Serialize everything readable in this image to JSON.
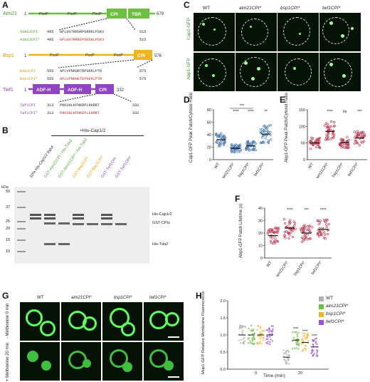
{
  "panels": {
    "A": "A",
    "B": "B",
    "C": "C",
    "D": "D",
    "E": "E",
    "F": "F",
    "G": "G",
    "H": "H"
  },
  "panelA": {
    "proteins": [
      {
        "name": "Aim21",
        "start": "1",
        "end": "679",
        "motifs": [
          "PxxP",
          "PxxP",
          "PxxP"
        ],
        "domains": [
          "CPI",
          "TBR"
        ],
        "color": "#6cbf3f"
      },
      {
        "name": "Bsp1",
        "start": "1",
        "end": "576",
        "motifs": [
          "PxxP",
          "PxxP",
          "PxxP"
        ],
        "domains": [
          "CPI"
        ],
        "color": "#f0b423"
      },
      {
        "name": "Twf1",
        "start": "1",
        "end": "332",
        "motifs": [],
        "domains": [
          "ADF-H",
          "ADF-H",
          "CPI"
        ],
        "color": "#8e44c4"
      }
    ],
    "aim21_wt": {
      "label": "Aim21CPI",
      "start": "495",
      "seq": "GPLGGTRRGRPGRRKLPSKV",
      "end": "515"
    },
    "aim21_mut": {
      "label": "Aim21CPI*",
      "start": "495",
      "seq": "GPLGGTRREEPGEEKLPSKV",
      "end": "515"
    },
    "bsp1_wt": {
      "label": "Bsp1CPI",
      "start": "555",
      "seq": "APLVPNKNRTRPGRKLPTR",
      "end": "575"
    },
    "bsp1_mut": {
      "label": "Bsp1CPI*",
      "start": "555",
      "seq": "APLVPNKNETEPGEKLPTR",
      "end": "575"
    },
    "twf1_wt": {
      "label": "Twf1CPI",
      "start": "313",
      "seq": "PNKSNLKFNKRPLRKRRT",
      "end": "332"
    },
    "twf1_mut": {
      "label": "Twf1CPI*",
      "start": "313",
      "seq": "PNKSNLKFNKEPLEKRRT",
      "end": "332"
    }
  },
  "panelB": {
    "header": "+His-Cap1/2",
    "lanes": [
      "10% His-Cap1/2 Input",
      "GST-Aim21CPI / His-Tda2",
      "GST-Aim21CPI* / His-Tda2",
      "GST-Bsp1CPI",
      "GST-Bsp1CPI*",
      "GST-Twf1CPI",
      "GST-Twf1CPI*"
    ],
    "lane_colors": [
      "#222222",
      "#4aa23a",
      "#4aa23a",
      "#e0a000",
      "#e0a000",
      "#8e44c4",
      "#8e44c4"
    ],
    "kda_label": "kDa",
    "markers": [
      "50",
      "37",
      "25",
      "20",
      "15",
      "10"
    ],
    "bands": [
      "His-Cap1/2",
      "GST-CPIs",
      "His-Tda2"
    ]
  },
  "panelC": {
    "columns": [
      "WT",
      "aim21CPI*",
      "bsp1CPI*",
      "twf1CPI*"
    ],
    "rows": [
      "Cap1-GFP",
      "Abp1-GFP"
    ]
  },
  "panelD": {
    "ylabel": "Cap1-GFP Peak Patch/Cytosol Ratio",
    "yticks": [
      "0",
      "20",
      "40",
      "60",
      "80"
    ],
    "categories": [
      "WT",
      "aim21CPI*",
      "bsp1CPI*",
      "twf1CPI*"
    ],
    "sig": [
      "",
      "****",
      "****",
      "**"
    ],
    "bracket_sig": "***",
    "colors": [
      "#3a70b0",
      "#3a70b0",
      "#3a70b0",
      "#3a70b0"
    ]
  },
  "panelE": {
    "ylabel": "Abp1-GFP Peak Patch/Cytosol Ratio",
    "yticks": [
      "0",
      "50",
      "100",
      "150"
    ],
    "categories": [
      "WT",
      "aim21CPI*",
      "bsp1CPI*",
      "twf1CPI*"
    ],
    "sig": [
      "",
      "****",
      "ns",
      "***"
    ]
  },
  "panelF": {
    "ylabel": "Abp1-GFP Patch Lifetime (s)",
    "yticks": [
      "0",
      "10",
      "20",
      "30",
      "40"
    ],
    "categories": [
      "WT",
      "aim21CPI*",
      "bsp1CPI*",
      "twf1CPI*"
    ],
    "sig": [
      "",
      "****",
      "***",
      "****"
    ]
  },
  "panelG": {
    "columns": [
      "WT",
      "aim21CPI*",
      "bsp1CPI*",
      "twf1CPI*"
    ],
    "rows": [
      "- Methionine 0 min",
      "+ Methionine 20 min"
    ]
  },
  "panelH": {
    "ylabel": "Mup1-GFP Relative Membrane Fluorescence",
    "xlabel": "Time (min)",
    "yticks": [
      "0.0",
      "0.5",
      "1.0",
      "1.5",
      "2.0"
    ],
    "xticks": [
      "0",
      "20"
    ],
    "legend": [
      "WT",
      "aim21CPI*",
      "bsp1CPI*",
      "twf1CPI*"
    ],
    "legend_colors": [
      "#b0b0b0",
      "#6cbf3f",
      "#f0b423",
      "#a050d8"
    ],
    "sig20": [
      "****",
      "****",
      "****"
    ]
  },
  "chart_data": [
    {
      "type": "scatter",
      "title": "",
      "ylabel": "Cap1-GFP Peak Patch/Cytosol Ratio",
      "categories": [
        "WT",
        "aim21CPI*",
        "bsp1CPI*",
        "twf1CPI*"
      ],
      "means": [
        32,
        18,
        22,
        41
      ],
      "ylim": [
        0,
        80
      ]
    },
    {
      "type": "scatter",
      "title": "",
      "ylabel": "Abp1-GFP Peak Patch/Cytosol Ratio",
      "categories": [
        "WT",
        "aim21CPI*",
        "bsp1CPI*",
        "twf1CPI*"
      ],
      "means": [
        50,
        85,
        52,
        65
      ],
      "ylim": [
        0,
        150
      ]
    },
    {
      "type": "scatter",
      "title": "",
      "ylabel": "Abp1-GFP Patch Lifetime (s)",
      "categories": [
        "WT",
        "aim21CPI*",
        "bsp1CPI*",
        "twf1CPI*"
      ],
      "means": [
        18,
        24,
        20,
        23
      ],
      "ylim": [
        0,
        40
      ]
    },
    {
      "type": "scatter",
      "title": "",
      "ylabel": "Mup1-GFP Relative Membrane Fluorescence",
      "x": [
        "0",
        "20"
      ],
      "series": [
        {
          "name": "WT",
          "values": [
            1.0,
            0.35
          ]
        },
        {
          "name": "aim21CPI*",
          "values": [
            1.0,
            0.85
          ]
        },
        {
          "name": "bsp1CPI*",
          "values": [
            1.0,
            0.78
          ]
        },
        {
          "name": "twf1CPI*",
          "values": [
            1.0,
            0.65
          ]
        }
      ],
      "ylim": [
        0,
        2.0
      ]
    }
  ]
}
